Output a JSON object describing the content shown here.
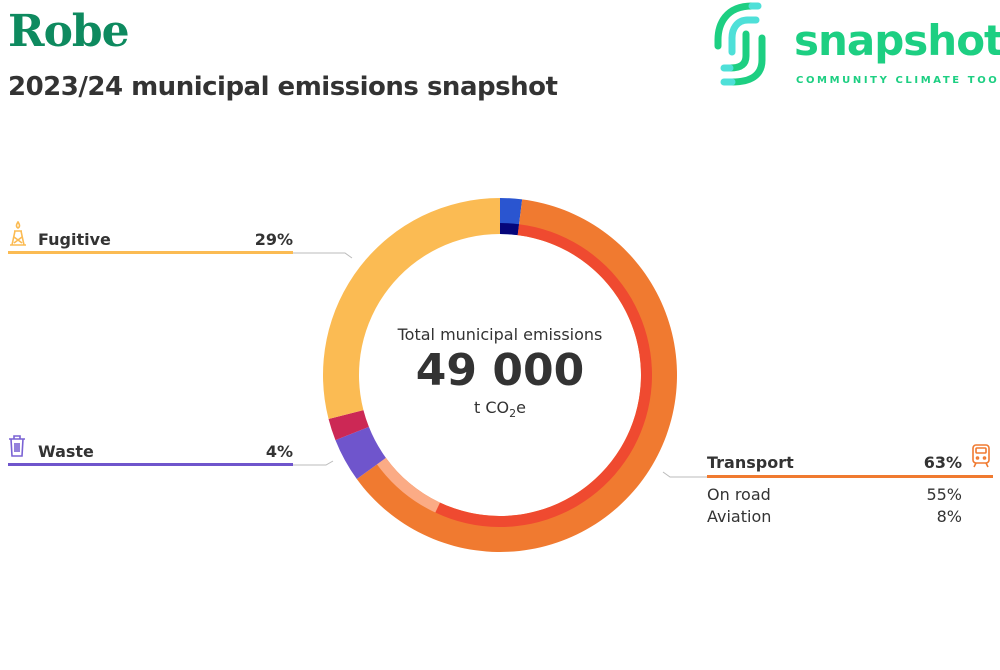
{
  "header": {
    "title": "Robe",
    "subtitle": "2023/24 municipal emissions snapshot"
  },
  "logo": {
    "word": "snapshot",
    "tagline": "COMMUNITY CLIMATE TOOL"
  },
  "chart_data": {
    "type": "pie",
    "variant": "donut",
    "center": {
      "label": "Total municipal emissions",
      "value": "49 000",
      "unit_prefix": "t CO",
      "unit_sub": "2",
      "unit_suffix": "e"
    },
    "outer": [
      {
        "name": "Other (blue)",
        "value": 2,
        "color": "#2a55d0"
      },
      {
        "name": "Transport",
        "value": 63,
        "color": "#f07a30"
      },
      {
        "name": "Waste",
        "value": 4,
        "color": "#6f55cc"
      },
      {
        "name": "Other (crimson)",
        "value": 2,
        "color": "#cc2855"
      },
      {
        "name": "Fugitive",
        "value": 29,
        "color": "#fbbb53"
      }
    ],
    "inner": [
      {
        "name": "Other (navy)",
        "value": 2,
        "color": "#06067a"
      },
      {
        "name": "On road",
        "value": 55,
        "color": "#ef4a30"
      },
      {
        "name": "Aviation",
        "value": 8,
        "color": "#fbab85"
      }
    ]
  },
  "legend": {
    "fugitive": {
      "label": "Fugitive",
      "pct": "29%",
      "icon": "gas-rig-icon",
      "color": "#fbbb53"
    },
    "waste": {
      "label": "Waste",
      "pct": "4%",
      "icon": "trash-bin-icon",
      "color": "#6f55cc"
    },
    "transport": {
      "label": "Transport",
      "pct": "63%",
      "icon": "train-icon",
      "color": "#f07a30",
      "subs": [
        {
          "label": "On road",
          "pct": "55%"
        },
        {
          "label": "Aviation",
          "pct": "8%"
        }
      ]
    }
  }
}
